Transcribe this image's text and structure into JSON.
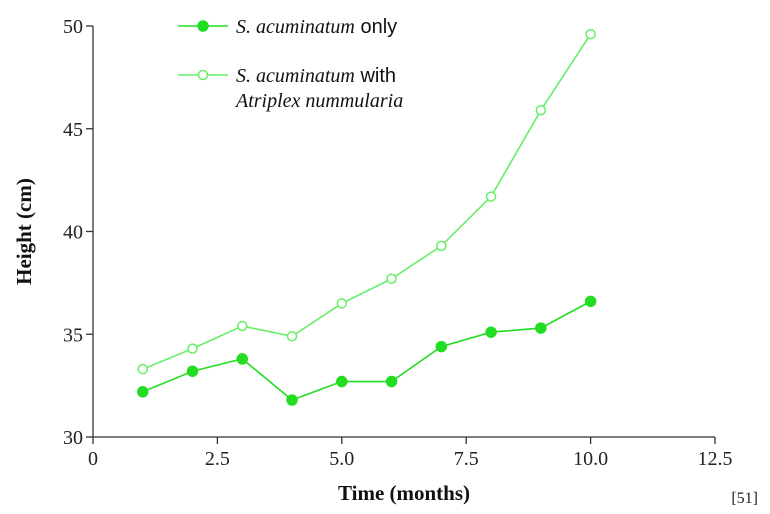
{
  "chart_data": {
    "type": "line",
    "xlabel": "Time (months)",
    "ylabel": "Height (cm)",
    "xlim": [
      0,
      12.5
    ],
    "ylim": [
      30,
      50
    ],
    "xticks": [
      "0",
      "2.5",
      "5.0",
      "7.5",
      "10.0",
      "12.5"
    ],
    "xtick_values": [
      0,
      2.5,
      5.0,
      7.5,
      10.0,
      12.5
    ],
    "yticks": [
      "30",
      "35",
      "40",
      "45",
      "50"
    ],
    "ytick_values": [
      30,
      35,
      40,
      45,
      50
    ],
    "grid": false,
    "legend_position": "top-left",
    "series": [
      {
        "legend": {
          "italic": "S. acuminatum",
          "rest": " only",
          "line2": ""
        },
        "marker": "filled",
        "color": "#22dd22",
        "x": [
          1,
          2,
          3,
          4,
          5,
          6,
          7,
          8,
          9,
          10
        ],
        "y": [
          32.2,
          33.2,
          33.8,
          31.8,
          32.7,
          32.7,
          34.4,
          35.1,
          35.3,
          36.6
        ]
      },
      {
        "legend": {
          "italic": "S. acuminatum",
          "rest": " with",
          "line2": "Atriplex nummularia"
        },
        "marker": "open",
        "color": "#66ee66",
        "x": [
          1,
          2,
          3,
          4,
          5,
          6,
          7,
          8,
          9,
          10
        ],
        "y": [
          33.3,
          34.3,
          35.4,
          34.9,
          36.5,
          37.7,
          39.3,
          41.7,
          45.9,
          49.6
        ]
      }
    ]
  },
  "citation": "[51]"
}
